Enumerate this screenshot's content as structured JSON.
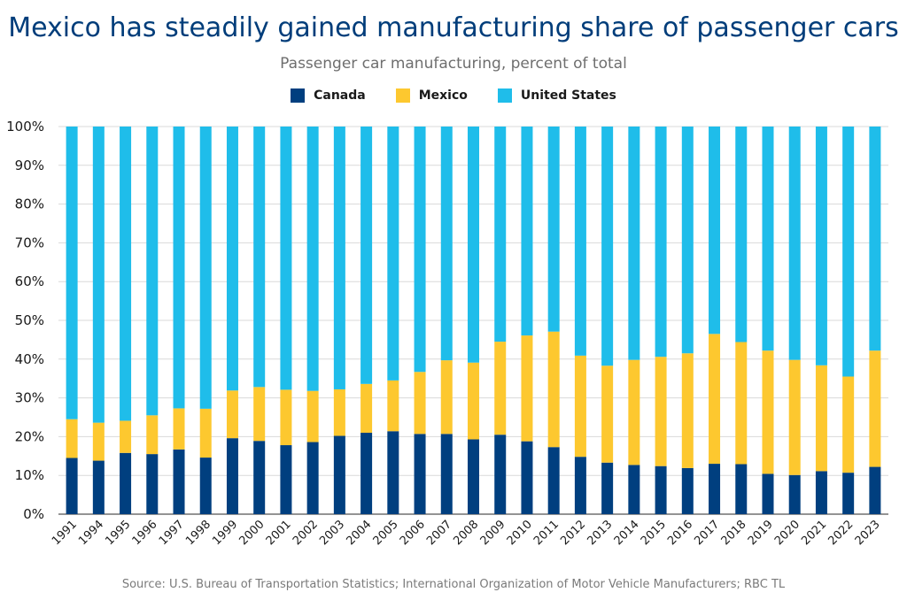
{
  "chart_data": {
    "type": "bar",
    "stacked": true,
    "title": "Mexico has steadily gained manufacturing share of passenger cars",
    "subtitle": "Passenger car manufacturing, percent of total",
    "source": "Source: U.S. Bureau of Transportation Statistics; International Organization of Motor Vehicle Manufacturers; RBC TL",
    "ylim": [
      0,
      100
    ],
    "yticks": [
      "0%",
      "10%",
      "20%",
      "30%",
      "40%",
      "50%",
      "60%",
      "70%",
      "80%",
      "90%",
      "100%"
    ],
    "grid": true,
    "legend_position": "top-center",
    "categories": [
      "1991",
      "1994",
      "1995",
      "1996",
      "1997",
      "1998",
      "1999",
      "2000",
      "2001",
      "2002",
      "2003",
      "2004",
      "2005",
      "2006",
      "2007",
      "2008",
      "2009",
      "2010",
      "2011",
      "2012",
      "2013",
      "2014",
      "2015",
      "2016",
      "2017",
      "2018",
      "2019",
      "2020",
      "2021",
      "2022",
      "2023"
    ],
    "series": [
      {
        "name": "Canada",
        "color": "#003f7f",
        "values": [
          14.5,
          13.8,
          15.8,
          15.5,
          16.7,
          14.6,
          19.6,
          18.9,
          17.8,
          18.6,
          20.2,
          21.0,
          21.4,
          20.7,
          20.7,
          19.3,
          20.5,
          18.8,
          17.3,
          14.8,
          13.3,
          12.7,
          12.4,
          11.9,
          13.0,
          12.9,
          10.4,
          10.1,
          11.1,
          10.7,
          12.2
        ]
      },
      {
        "name": "Mexico",
        "color": "#fdc82f",
        "values": [
          10.0,
          9.8,
          8.3,
          10.0,
          10.6,
          12.6,
          12.3,
          13.9,
          14.3,
          13.2,
          12.0,
          12.6,
          13.1,
          16.0,
          19.0,
          19.8,
          24.0,
          27.3,
          29.8,
          26.1,
          25.0,
          27.1,
          28.2,
          29.6,
          33.5,
          31.5,
          31.8,
          29.7,
          27.3,
          24.8,
          30.0
        ]
      },
      {
        "name": "United States",
        "color": "#1fbdea",
        "values": [
          75.5,
          76.4,
          75.9,
          74.5,
          72.7,
          72.8,
          68.1,
          67.2,
          67.9,
          68.2,
          67.8,
          66.4,
          65.5,
          63.3,
          60.3,
          60.9,
          55.5,
          53.9,
          52.9,
          59.1,
          61.7,
          60.2,
          59.4,
          58.5,
          53.5,
          55.6,
          57.8,
          60.2,
          61.6,
          64.5,
          57.8
        ]
      }
    ]
  }
}
